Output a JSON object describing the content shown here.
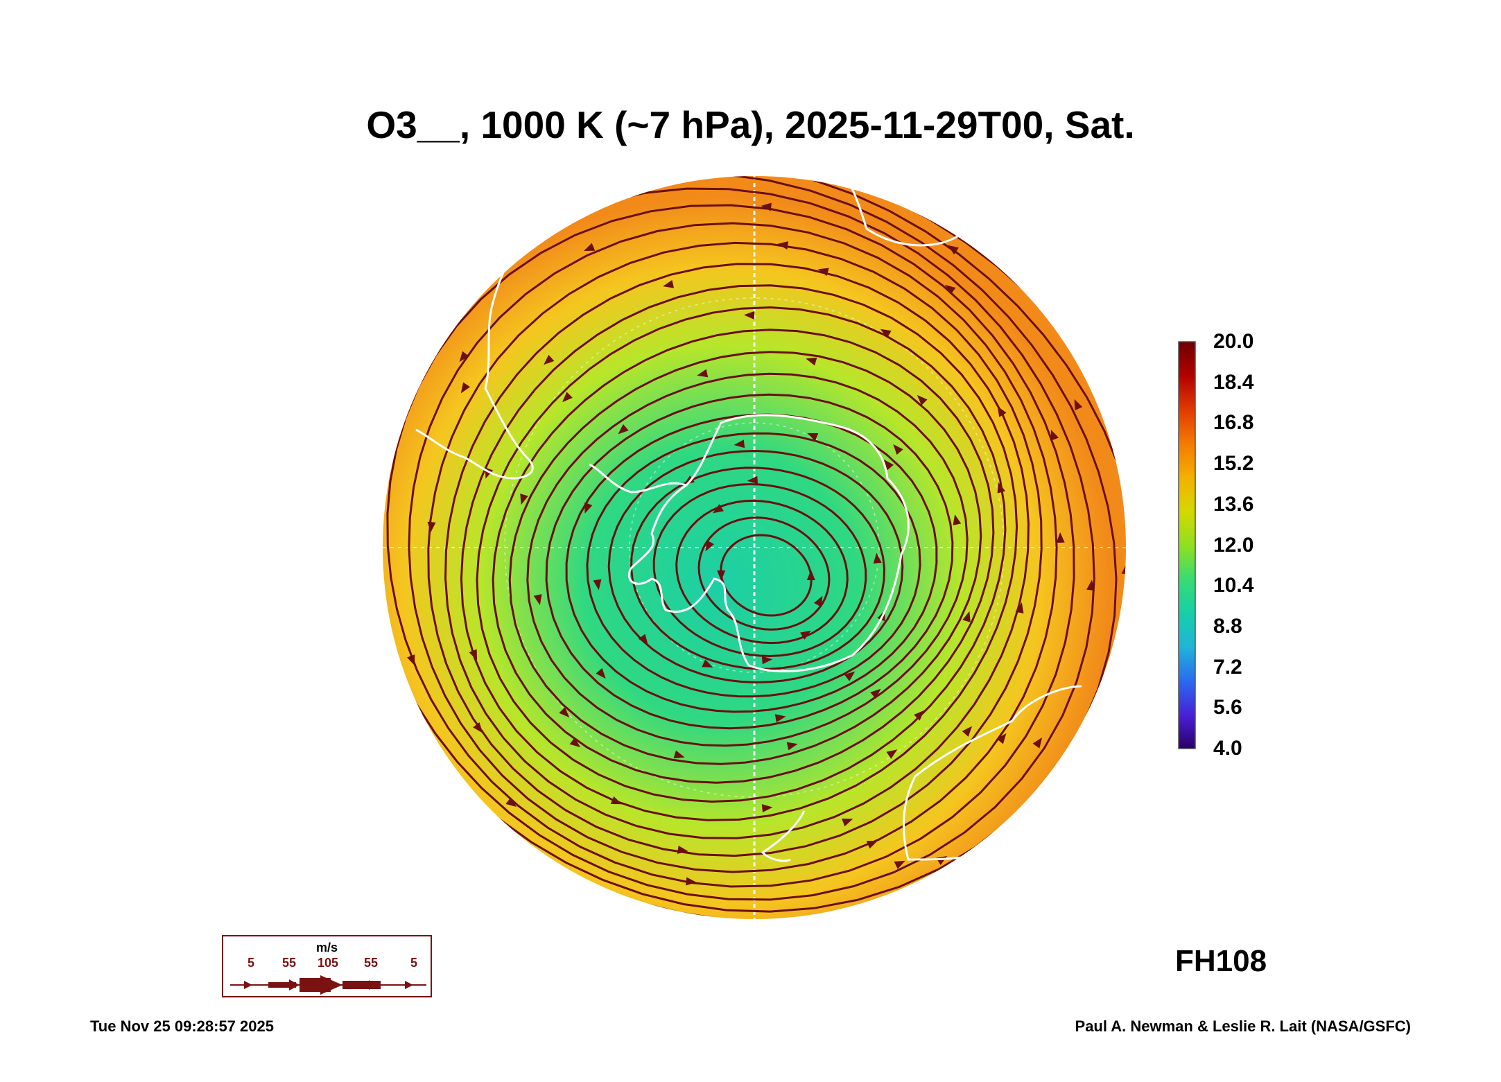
{
  "title": "O3__, 1000 K (~7 hPa), 2025-11-29T00, Sat.",
  "colorbar": {
    "labels": [
      "20.0",
      "18.4",
      "16.8",
      "15.2",
      "13.6",
      "12.0",
      "10.4",
      "8.8",
      "7.2",
      "5.6",
      "4.0"
    ],
    "colors": [
      "#6e0000",
      "#b30000",
      "#e23a00",
      "#f57a00",
      "#f4b000",
      "#d4d800",
      "#90e020",
      "#38dc70",
      "#16d0a8",
      "#20b4d8",
      "#2a6cf0",
      "#4a20d8",
      "#2a006a"
    ]
  },
  "map_colors": {
    "outer": "#f28a1a",
    "mid": "#f5c51f",
    "inner_ring": "#b7e62a",
    "core": "#2fd882",
    "center": "#1ccfa6",
    "streamline": "#6b0f0f",
    "coast": "#ffffff"
  },
  "forecast_hour": "FH108",
  "wind_legend": {
    "unit": "m/s",
    "ticks": [
      "5",
      "55",
      "105",
      "55",
      "5"
    ]
  },
  "footer": {
    "timestamp": "Tue Nov 25 09:28:57 2025",
    "credit": "Paul A. Newman & Leslie R. Lait (NASA/GSFC)"
  }
}
